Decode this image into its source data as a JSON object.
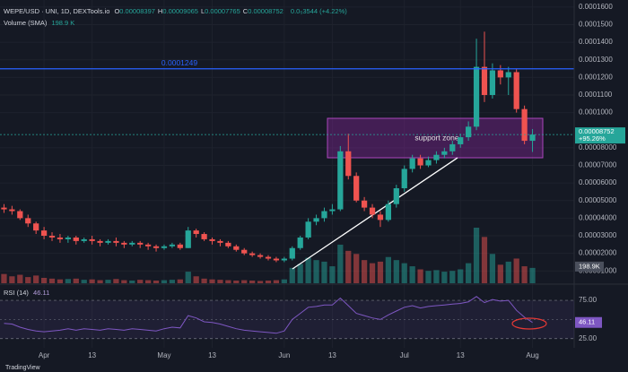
{
  "chart_data": {
    "type": "candlestick",
    "title": "WEPE/USD · UNI, 1D, DEXTools.io",
    "readout": [
      {
        "label": "O",
        "value": "0.00008397"
      },
      {
        "label": "H",
        "value": "0.00009065"
      },
      {
        "label": "L",
        "value": "0.00007765"
      },
      {
        "label": "C",
        "value": "0.00008752"
      }
    ],
    "change_text": "0.0₅3544 (+4.22%)",
    "categories": [
      null,
      null,
      null,
      null,
      null,
      "Apr",
      null,
      null,
      null,
      null,
      null,
      "13",
      null,
      null,
      null,
      null,
      null,
      null,
      null,
      null,
      "May",
      null,
      null,
      null,
      null,
      null,
      "13",
      null,
      null,
      null,
      null,
      null,
      null,
      null,
      null,
      "Jun",
      null,
      null,
      null,
      null,
      null,
      "13",
      null,
      null,
      null,
      null,
      null,
      null,
      null,
      null,
      "Jul",
      null,
      null,
      null,
      null,
      null,
      null,
      "13",
      null,
      null,
      null,
      null,
      null,
      null,
      null,
      null,
      "Aug"
    ],
    "open": [
      4.6e-05,
      4.5e-05,
      4.4e-05,
      4e-05,
      3.7e-05,
      3.3e-05,
      3e-05,
      2.9e-05,
      2.8e-05,
      2.9e-05,
      2.7e-05,
      2.8e-05,
      2.7e-05,
      2.6e-05,
      2.7e-05,
      2.6e-05,
      2.5e-05,
      2.6e-05,
      2.5e-05,
      2.4e-05,
      2.3e-05,
      2.4e-05,
      2.5e-05,
      2.3e-05,
      3.3e-05,
      3.1e-05,
      2.8e-05,
      2.7e-05,
      2.6e-05,
      2.4e-05,
      2.2e-05,
      2e-05,
      1.9e-05,
      1.8e-05,
      1.7e-05,
      1.6e-05,
      1.7e-05,
      2.3e-05,
      2.9e-05,
      3.8e-05,
      4e-05,
      4.4e-05,
      4.5e-05,
      7.8e-05,
      6.4e-05,
      5e-05,
      4.6e-05,
      4.2e-05,
      3.9e-05,
      4.8e-05,
      5.7e-05,
      6.8e-05,
      7.4e-05,
      7e-05,
      7.3e-05,
      7.6e-05,
      7.8e-05,
      8.2e-05,
      8.6e-05,
      9.2e-05,
      0.000126,
      0.00011,
      0.000124,
      0.00012,
      0.000123,
      0.000102,
      8.397e-05
    ],
    "high": [
      4.8e-05,
      4.7e-05,
      4.5e-05,
      4.2e-05,
      3.8e-05,
      3.5e-05,
      3.2e-05,
      3.1e-05,
      3e-05,
      3e-05,
      2.9e-05,
      3e-05,
      2.8e-05,
      2.8e-05,
      2.9e-05,
      2.7e-05,
      2.7e-05,
      2.7e-05,
      2.6e-05,
      2.5e-05,
      2.5e-05,
      2.6e-05,
      2.6e-05,
      3.5e-05,
      3.4e-05,
      3.2e-05,
      2.9e-05,
      2.8e-05,
      2.7e-05,
      2.5e-05,
      2.3e-05,
      2.1e-05,
      2e-05,
      1.9e-05,
      1.8e-05,
      1.8e-05,
      2.4e-05,
      3e-05,
      4e-05,
      4.2e-05,
      4.6e-05,
      4.8e-05,
      8.1e-05,
      8.8e-05,
      6.6e-05,
      5.2e-05,
      4.8e-05,
      4.4e-05,
      5e-05,
      5.9e-05,
      7e-05,
      7.6e-05,
      7.6e-05,
      7.5e-05,
      7.8e-05,
      8e-05,
      8.4e-05,
      8.8e-05,
      9.5e-05,
      0.000142,
      0.000146,
      0.000128,
      0.000127,
      0.000126,
      0.000125,
      0.000104,
      9.065e-05
    ],
    "low": [
      4.3e-05,
      4.2e-05,
      3.9e-05,
      3.5e-05,
      3.1e-05,
      2.8e-05,
      2.7e-05,
      2.6e-05,
      2.6e-05,
      2.5e-05,
      2.6e-05,
      2.5e-05,
      2.4e-05,
      2.5e-05,
      2.4e-05,
      2.3e-05,
      2.4e-05,
      2.3e-05,
      2.2e-05,
      2.1e-05,
      2.2e-05,
      2.3e-05,
      2.2e-05,
      2.3e-05,
      2.9e-05,
      2.7e-05,
      2.5e-05,
      2.4e-05,
      2.3e-05,
      2.1e-05,
      1.9e-05,
      1.8e-05,
      1.7e-05,
      1.6e-05,
      1.5e-05,
      1.5e-05,
      1.6e-05,
      2.2e-05,
      2.8e-05,
      3.6e-05,
      3.8e-05,
      4.2e-05,
      4.4e-05,
      6.2e-05,
      4.9e-05,
      4.4e-05,
      4e-05,
      3.5e-05,
      3.8e-05,
      4.6e-05,
      5.5e-05,
      6.6e-05,
      6.8e-05,
      6.9e-05,
      7.1e-05,
      7.4e-05,
      7.6e-05,
      8e-05,
      8.4e-05,
      9e-05,
      0.000106,
      0.000108,
      0.000116,
      0.00011,
      0.0001,
      8.2e-05,
      7.765e-05
    ],
    "close": [
      4.5e-05,
      4.4e-05,
      4e-05,
      3.7e-05,
      3.3e-05,
      3e-05,
      2.9e-05,
      2.8e-05,
      2.9e-05,
      2.7e-05,
      2.8e-05,
      2.7e-05,
      2.6e-05,
      2.7e-05,
      2.6e-05,
      2.5e-05,
      2.6e-05,
      2.5e-05,
      2.4e-05,
      2.3e-05,
      2.4e-05,
      2.5e-05,
      2.3e-05,
      3.3e-05,
      3.1e-05,
      2.8e-05,
      2.7e-05,
      2.6e-05,
      2.4e-05,
      2.2e-05,
      2e-05,
      1.9e-05,
      1.8e-05,
      1.7e-05,
      1.6e-05,
      1.7e-05,
      2.3e-05,
      2.9e-05,
      3.8e-05,
      4e-05,
      4.4e-05,
      4.5e-05,
      7.8e-05,
      6.4e-05,
      5e-05,
      4.6e-05,
      4.2e-05,
      3.9e-05,
      4.8e-05,
      5.7e-05,
      6.8e-05,
      7.4e-05,
      7e-05,
      7.3e-05,
      7.6e-05,
      7.8e-05,
      8.2e-05,
      8.6e-05,
      9.2e-05,
      0.000126,
      0.00011,
      0.000124,
      0.00012,
      0.000123,
      0.000102,
      8.397e-05,
      8.752e-05
    ],
    "up_color": "#26a69a",
    "down_color": "#ef5350",
    "ylim": [
      3e-06,
      0.000164
    ],
    "yticks": [
      {
        "value": 0.00016,
        "label": "0.0001600"
      },
      {
        "value": 0.00015,
        "label": "0.0001500"
      },
      {
        "value": 0.00014,
        "label": "0.0001400"
      },
      {
        "value": 0.00013,
        "label": "0.0001300"
      },
      {
        "value": 0.00012,
        "label": "0.0001200"
      },
      {
        "value": 0.00011,
        "label": "0.0001100"
      },
      {
        "value": 0.0001,
        "label": "0.0001000"
      },
      {
        "value": 8e-05,
        "label": "0.00008000"
      },
      {
        "value": 7e-05,
        "label": "0.00007000"
      },
      {
        "value": 6e-05,
        "label": "0.00006000"
      },
      {
        "value": 5e-05,
        "label": "0.00005000"
      },
      {
        "value": 4e-05,
        "label": "0.00004000"
      },
      {
        "value": 3e-05,
        "label": "0.00003000"
      },
      {
        "value": 2e-05,
        "label": "0.00002000"
      },
      {
        "value": 1e-05,
        "label": "0.00001000"
      }
    ],
    "grid": true,
    "last_price": {
      "label": "0.00008752",
      "change": "+95.26%"
    },
    "hline": {
      "value": 0.0001249,
      "label": "0.0001249",
      "color": "#2962ff"
    },
    "annotation": "support zone",
    "volume": {
      "name": "Volume (SMA)",
      "header_value": "198.9 K",
      "last_label": "198.9K",
      "values": [
        120000,
        90000,
        110000,
        80000,
        100000,
        70000,
        60000,
        50000,
        55000,
        60000,
        45000,
        50000,
        40000,
        45000,
        55000,
        40000,
        35000,
        45000,
        40000,
        35000,
        40000,
        45000,
        50000,
        150000,
        90000,
        60000,
        50000,
        45000,
        40000,
        35000,
        40000,
        35000,
        30000,
        35000,
        40000,
        50000,
        200000,
        250000,
        330000,
        300000,
        280000,
        220000,
        500000,
        420000,
        380000,
        300000,
        260000,
        280000,
        340000,
        300000,
        260000,
        220000,
        180000,
        160000,
        170000,
        150000,
        160000,
        180000,
        260000,
        720000,
        600000,
        380000,
        240000,
        280000,
        320000,
        220000,
        198900
      ]
    },
    "rsi": {
      "name": "RSI (14)",
      "color": "#7e57c2",
      "values": [
        45,
        44,
        40,
        37,
        35,
        34,
        35,
        36,
        38,
        36,
        38,
        37,
        36,
        38,
        37,
        36,
        38,
        37,
        36,
        35,
        38,
        40,
        39,
        55,
        52,
        47,
        46,
        44,
        41,
        38,
        36,
        35,
        34,
        33,
        32,
        35,
        50,
        58,
        66,
        67,
        69,
        69,
        78,
        68,
        58,
        55,
        52,
        50,
        56,
        61,
        66,
        68,
        65,
        67,
        68,
        69,
        70,
        71,
        73,
        80,
        72,
        76,
        74,
        75,
        62,
        53,
        46.11
      ],
      "ylim": [
        13,
        95
      ],
      "yticks": [
        {
          "value": 75,
          "label": "75.00"
        },
        {
          "value": 25,
          "label": "25.00"
        }
      ]
    },
    "footer": "TradingView"
  }
}
